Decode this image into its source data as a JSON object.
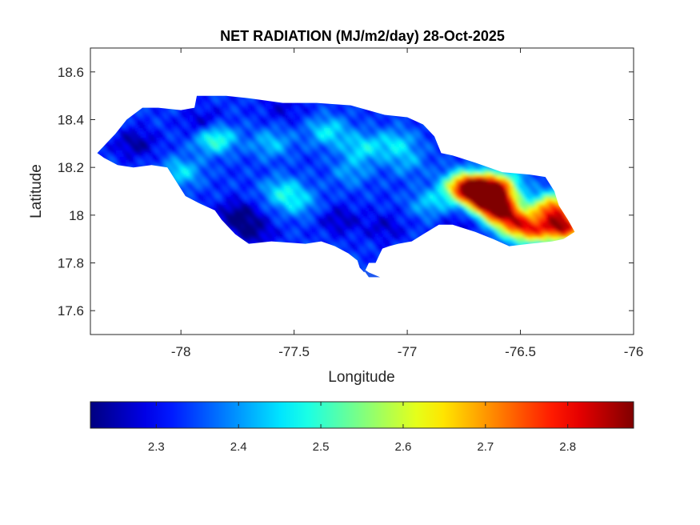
{
  "chart_data": {
    "type": "heatmap",
    "title": "NET RADIATION (MJ/m2/day) 28-Oct-2025",
    "xlabel": "Longitude",
    "ylabel": "Latitude",
    "xlim": [
      -78.4,
      -76
    ],
    "ylim": [
      17.5,
      18.7
    ],
    "x_ticks": [
      -78,
      -77.5,
      -77,
      -76.5,
      -76
    ],
    "x_tick_labels": [
      "-78",
      "-77.5",
      "-77",
      "-76.5",
      "-76"
    ],
    "y_ticks": [
      17.6,
      17.8,
      18,
      18.2,
      18.4,
      18.6
    ],
    "y_tick_labels": [
      "17.6",
      "17.8",
      "18",
      "18.2",
      "18.4",
      "18.6"
    ],
    "colormap": "jet",
    "colorbar": {
      "location": "southoutside",
      "limits": [
        2.22,
        2.88
      ],
      "ticks": [
        2.3,
        2.4,
        2.5,
        2.6,
        2.7,
        2.8
      ],
      "tick_labels": [
        "2.3",
        "2.4",
        "2.5",
        "2.6",
        "2.7",
        "2.8"
      ]
    },
    "grid": false,
    "region": "Jamaica",
    "outline": [
      [
        -78.37,
        18.26
      ],
      [
        -78.33,
        18.3
      ],
      [
        -78.29,
        18.34
      ],
      [
        -78.24,
        18.4
      ],
      [
        -78.17,
        18.45
      ],
      [
        -78.1,
        18.45
      ],
      [
        -78.0,
        18.44
      ],
      [
        -77.94,
        18.45
      ],
      [
        -77.93,
        18.5
      ],
      [
        -77.8,
        18.5
      ],
      [
        -77.7,
        18.49
      ],
      [
        -77.55,
        18.47
      ],
      [
        -77.4,
        18.47
      ],
      [
        -77.25,
        18.46
      ],
      [
        -77.1,
        18.42
      ],
      [
        -77.0,
        18.41
      ],
      [
        -76.93,
        18.38
      ],
      [
        -76.88,
        18.33
      ],
      [
        -76.85,
        18.26
      ],
      [
        -76.8,
        18.25
      ],
      [
        -76.7,
        18.22
      ],
      [
        -76.58,
        18.18
      ],
      [
        -76.46,
        18.17
      ],
      [
        -76.39,
        18.16
      ],
      [
        -76.35,
        18.1
      ],
      [
        -76.33,
        18.04
      ],
      [
        -76.29,
        17.98
      ],
      [
        -76.26,
        17.93
      ],
      [
        -76.31,
        17.9
      ],
      [
        -76.36,
        17.89
      ],
      [
        -76.46,
        17.88
      ],
      [
        -76.55,
        17.87
      ],
      [
        -76.62,
        17.9
      ],
      [
        -76.7,
        17.93
      ],
      [
        -76.8,
        17.96
      ],
      [
        -76.86,
        17.96
      ],
      [
        -76.93,
        17.92
      ],
      [
        -76.98,
        17.89
      ],
      [
        -77.04,
        17.88
      ],
      [
        -77.08,
        17.87
      ],
      [
        -77.11,
        17.86
      ],
      [
        -77.13,
        17.82
      ],
      [
        -77.14,
        17.8
      ],
      [
        -77.17,
        17.8
      ],
      [
        -77.18,
        17.78
      ],
      [
        -77.19,
        17.76
      ],
      [
        -77.21,
        17.78
      ],
      [
        -77.22,
        17.81
      ],
      [
        -77.26,
        17.84
      ],
      [
        -77.32,
        17.87
      ],
      [
        -77.38,
        17.89
      ],
      [
        -77.45,
        17.88
      ],
      [
        -77.6,
        17.89
      ],
      [
        -77.7,
        17.88
      ],
      [
        -77.76,
        17.92
      ],
      [
        -77.82,
        17.98
      ],
      [
        -77.85,
        18.02
      ],
      [
        -77.92,
        18.05
      ],
      [
        -77.98,
        18.08
      ],
      [
        -78.02,
        18.14
      ],
      [
        -78.06,
        18.2
      ],
      [
        -78.13,
        18.21
      ],
      [
        -78.21,
        18.2
      ],
      [
        -78.28,
        18.21
      ],
      [
        -78.34,
        18.24
      ]
    ],
    "inlet": [
      [
        -77.2,
        17.78
      ],
      [
        -77.17,
        17.74
      ],
      [
        -77.12,
        17.74
      ],
      [
        -77.17,
        17.76
      ]
    ],
    "field_base": 2.33,
    "hotspots": [
      {
        "lon": -76.67,
        "lat": 18.1,
        "value": 2.87
      },
      {
        "lon": -76.62,
        "lat": 18.05,
        "value": 2.8
      },
      {
        "lon": -76.75,
        "lat": 18.12,
        "value": 2.7
      },
      {
        "lon": -76.57,
        "lat": 18.0,
        "value": 2.65
      },
      {
        "lon": -76.5,
        "lat": 17.95,
        "value": 2.62
      },
      {
        "lon": -76.3,
        "lat": 17.95,
        "value": 2.78
      },
      {
        "lon": -76.36,
        "lat": 18.03,
        "value": 2.72
      },
      {
        "lon": -76.42,
        "lat": 17.93,
        "value": 2.56
      },
      {
        "lon": -76.58,
        "lat": 18.13,
        "value": 2.55
      },
      {
        "lon": -77.35,
        "lat": 18.35,
        "value": 2.46
      },
      {
        "lon": -77.2,
        "lat": 18.28,
        "value": 2.45
      },
      {
        "lon": -77.05,
        "lat": 18.3,
        "value": 2.44
      },
      {
        "lon": -77.6,
        "lat": 18.3,
        "value": 2.43
      },
      {
        "lon": -77.55,
        "lat": 18.1,
        "value": 2.45
      },
      {
        "lon": -77.48,
        "lat": 18.05,
        "value": 2.42
      },
      {
        "lon": -77.85,
        "lat": 18.32,
        "value": 2.52
      },
      {
        "lon": -78.0,
        "lat": 18.18,
        "value": 2.45
      },
      {
        "lon": -77.25,
        "lat": 18.18,
        "value": 2.4
      },
      {
        "lon": -76.9,
        "lat": 18.05,
        "value": 2.43
      },
      {
        "lon": -77.0,
        "lat": 18.22,
        "value": 2.4
      }
    ],
    "coldspots": [
      {
        "lon": -78.2,
        "lat": 18.3,
        "value": 2.24
      },
      {
        "lon": -77.75,
        "lat": 18.0,
        "value": 2.22
      },
      {
        "lon": -77.68,
        "lat": 17.93,
        "value": 2.24
      },
      {
        "lon": -77.9,
        "lat": 18.38,
        "value": 2.25
      },
      {
        "lon": -77.3,
        "lat": 17.98,
        "value": 2.26
      },
      {
        "lon": -77.1,
        "lat": 17.95,
        "value": 2.27
      },
      {
        "lon": -76.75,
        "lat": 17.96,
        "value": 2.27
      },
      {
        "lon": -77.55,
        "lat": 18.45,
        "value": 2.28
      }
    ]
  }
}
